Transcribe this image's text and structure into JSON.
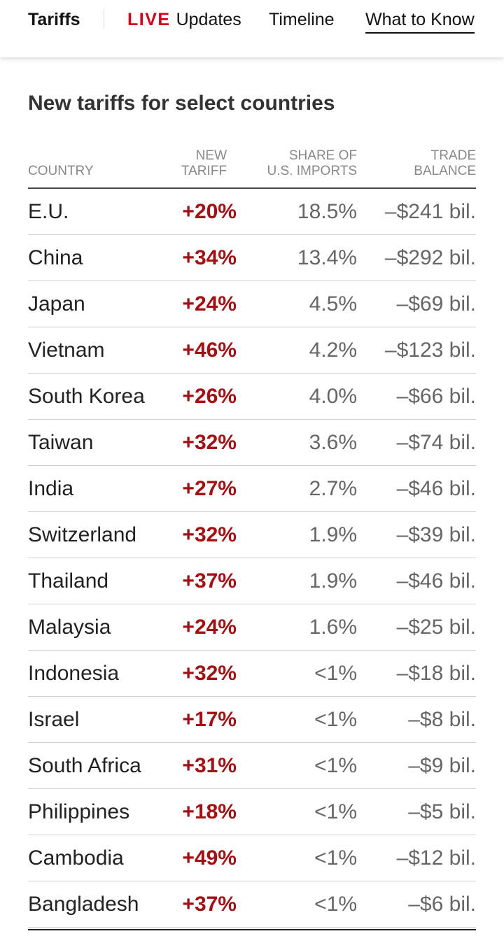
{
  "nav": {
    "section": "Tariffs",
    "live_label": "LIVE",
    "updates_label": "Updates",
    "timeline_label": "Timeline",
    "know_label": "What to Know"
  },
  "table": {
    "title": "New tariffs for select countries",
    "headers": {
      "country": "COUNTRY",
      "tariff": "NEW\nTARIFF",
      "share": "SHARE OF\nU.S. IMPORTS",
      "balance": "TRADE\nBALANCE"
    },
    "accent_color": "#a30f12",
    "rows": [
      {
        "country": "E.U.",
        "tariff": "+20%",
        "share": "18.5%",
        "balance": "–$241 bil."
      },
      {
        "country": "China",
        "tariff": "+34%",
        "share": "13.4%",
        "balance": "–$292 bil."
      },
      {
        "country": "Japan",
        "tariff": "+24%",
        "share": "4.5%",
        "balance": "–$69 bil."
      },
      {
        "country": "Vietnam",
        "tariff": "+46%",
        "share": "4.2%",
        "balance": "–$123 bil."
      },
      {
        "country": "South Korea",
        "tariff": "+26%",
        "share": "4.0%",
        "balance": "–$66 bil."
      },
      {
        "country": "Taiwan",
        "tariff": "+32%",
        "share": "3.6%",
        "balance": "–$74 bil."
      },
      {
        "country": "India",
        "tariff": "+27%",
        "share": "2.7%",
        "balance": "–$46 bil."
      },
      {
        "country": "Switzerland",
        "tariff": "+32%",
        "share": "1.9%",
        "balance": "–$39 bil."
      },
      {
        "country": "Thailand",
        "tariff": "+37%",
        "share": "1.9%",
        "balance": "–$46 bil."
      },
      {
        "country": "Malaysia",
        "tariff": "+24%",
        "share": "1.6%",
        "balance": "–$25 bil."
      },
      {
        "country": "Indonesia",
        "tariff": "+32%",
        "share": "<1%",
        "balance": "–$18 bil."
      },
      {
        "country": "Israel",
        "tariff": "+17%",
        "share": "<1%",
        "balance": "–$8 bil."
      },
      {
        "country": "South Africa",
        "tariff": "+31%",
        "share": "<1%",
        "balance": "–$9 bil."
      },
      {
        "country": "Philippines",
        "tariff": "+18%",
        "share": "<1%",
        "balance": "–$5 bil."
      },
      {
        "country": "Cambodia",
        "tariff": "+49%",
        "share": "<1%",
        "balance": "–$12 bil."
      },
      {
        "country": "Bangladesh",
        "tariff": "+37%",
        "share": "<1%",
        "balance": "–$6 bil."
      }
    ]
  }
}
